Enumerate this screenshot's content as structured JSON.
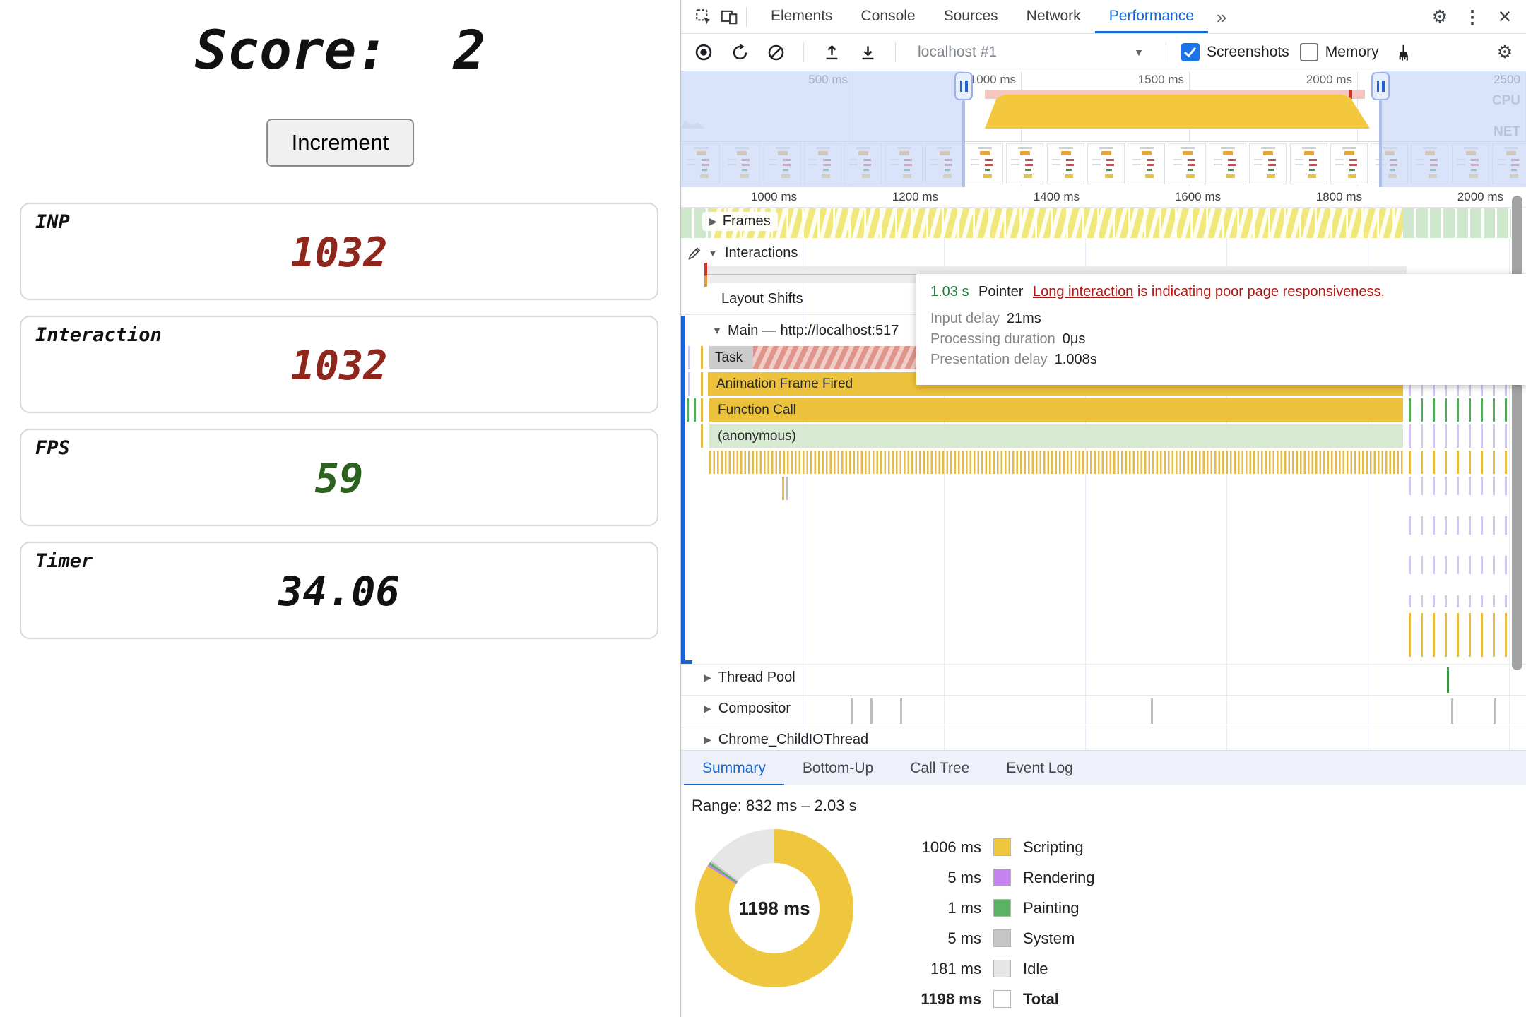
{
  "left_page": {
    "title": "Score:  2",
    "increment_button": "Increment",
    "cards": [
      {
        "label": "INP",
        "value": "1032"
      },
      {
        "label": "Interaction",
        "value": "1032"
      },
      {
        "label": "FPS",
        "value": "59"
      },
      {
        "label": "Timer",
        "value": "34.06"
      }
    ]
  },
  "devtools": {
    "main_tabs": [
      "Elements",
      "Console",
      "Sources",
      "Network",
      "Performance"
    ],
    "active_main_tab": "Performance",
    "controls": {
      "session_selector": "localhost #1",
      "screenshots": {
        "label": "Screenshots",
        "checked": true
      },
      "memory": {
        "label": "Memory",
        "checked": false
      }
    },
    "overview": {
      "time_labels": [
        "500 ms",
        "1000 ms",
        "1500 ms",
        "2000 ms",
        "2500"
      ],
      "cpu_label": "CPU",
      "net_label": "NET"
    },
    "ruler_labels": [
      "1000 ms",
      "1200 ms",
      "1400 ms",
      "1600 ms",
      "1800 ms",
      "2000 ms"
    ],
    "tracks": {
      "frames_label": "Frames",
      "interactions_label": "Interactions",
      "layout_shifts_label": "Layout Shifts",
      "main_label": "Main — http://localhost:517",
      "thread_pool_label": "Thread Pool",
      "compositor_label": "Compositor",
      "chrome_child_io_label": "Chrome_ChildIOThread",
      "flame_rows": [
        "Task",
        "Animation Frame Fired",
        "Function Call",
        "(anonymous)"
      ]
    },
    "tooltip": {
      "duration": "1.03 s",
      "event_type": "Pointer",
      "link_text": "Long interaction",
      "warning_text": "is indicating poor page responsiveness.",
      "details": [
        {
          "label": "Input delay",
          "value": "21ms"
        },
        {
          "label": "Processing duration",
          "value": "0μs"
        },
        {
          "label": "Presentation delay",
          "value": "1.008s"
        }
      ]
    },
    "bottom_tabs": [
      "Summary",
      "Bottom-Up",
      "Call Tree",
      "Event Log"
    ],
    "active_bottom_tab": "Summary",
    "summary": {
      "range_text": "Range: 832 ms – 2.03 s"
    }
  },
  "chart_data": {
    "type": "pie",
    "title": "Performance summary breakdown",
    "center_label": "1198 ms",
    "unit": "ms",
    "categories": [
      "Scripting",
      "Rendering",
      "Painting",
      "System",
      "Idle"
    ],
    "values": [
      1006,
      5,
      1,
      5,
      181
    ],
    "colors": [
      "#eec73e",
      "#c583f1",
      "#5cb264",
      "#c6c6c6",
      "#e6e6e6"
    ],
    "total": {
      "label": "Total",
      "value": 1198,
      "display": "1198 ms"
    },
    "legend": [
      {
        "value_display": "1006 ms",
        "label": "Scripting",
        "color": "#eec73e",
        "bold": false
      },
      {
        "value_display": "5 ms",
        "label": "Rendering",
        "color": "#c583f1",
        "bold": false
      },
      {
        "value_display": "1 ms",
        "label": "Painting",
        "color": "#5cb264",
        "bold": false
      },
      {
        "value_display": "5 ms",
        "label": "System",
        "color": "#c6c6c6",
        "bold": false
      },
      {
        "value_display": "181 ms",
        "label": "Idle",
        "color": "#e6e6e6",
        "bold": false
      },
      {
        "value_display": "1198 ms",
        "label": "Total",
        "color": "#ffffff",
        "bold": true
      }
    ]
  }
}
